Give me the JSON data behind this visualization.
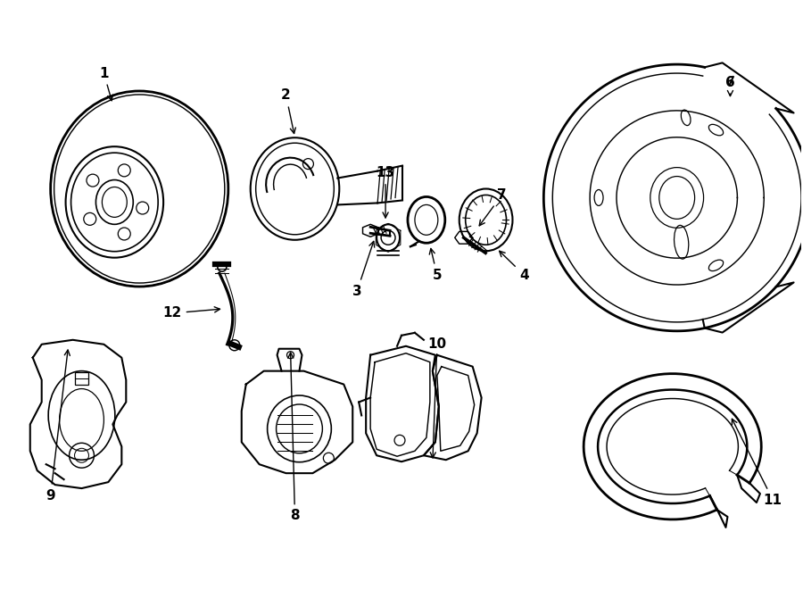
{
  "bg_color": "#ffffff",
  "line_color": "#000000",
  "lw": 1.5,
  "fig_width": 9.0,
  "fig_height": 6.61,
  "dpi": 100
}
